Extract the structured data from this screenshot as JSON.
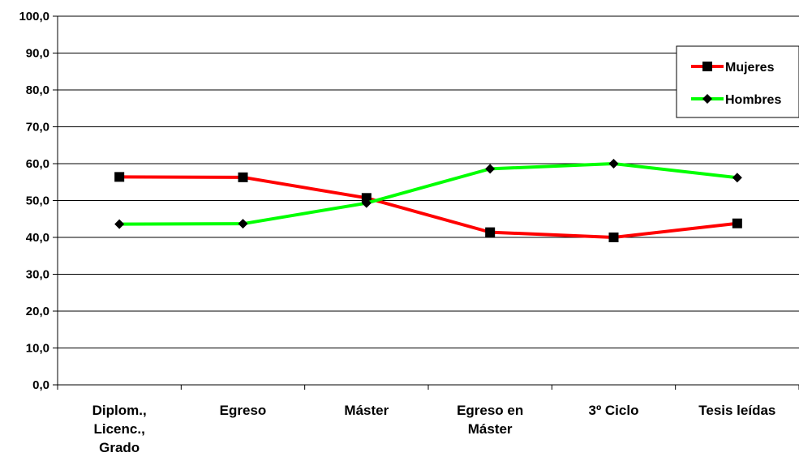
{
  "chart_data": {
    "type": "line",
    "title": "",
    "xlabel": "",
    "ylabel": "",
    "categories": [
      "Diplom., Licenc., Grado",
      "Egreso",
      "Máster",
      "Egreso en Máster",
      "3º Ciclo",
      "Tesis leídas"
    ],
    "category_lines": [
      [
        "Diplom.,",
        "Licenc.,",
        "Grado"
      ],
      [
        "Egreso"
      ],
      [
        "Máster"
      ],
      [
        "Egreso en",
        "Máster"
      ],
      [
        "3º Ciclo"
      ],
      [
        "Tesis leídas"
      ]
    ],
    "yticks": [
      "0,0",
      "10,0",
      "20,0",
      "30,0",
      "40,0",
      "50,0",
      "60,0",
      "70,0",
      "80,0",
      "90,0",
      "100,0"
    ],
    "ylim": [
      0,
      100
    ],
    "grid": true,
    "legend_position": "top-right",
    "series": [
      {
        "name": "Mujeres",
        "color": "#ff0000",
        "marker": "square",
        "values": [
          56.4,
          56.3,
          50.7,
          41.4,
          40.0,
          43.8
        ]
      },
      {
        "name": "Hombres",
        "color": "#00ff00",
        "marker": "diamond",
        "values": [
          43.6,
          43.7,
          49.3,
          58.6,
          60.0,
          56.2
        ]
      }
    ]
  }
}
